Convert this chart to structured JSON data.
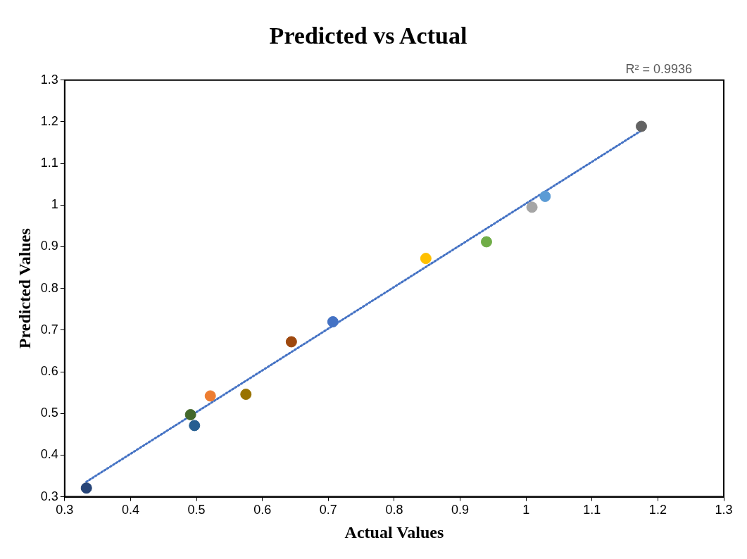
{
  "chart_data": {
    "type": "scatter",
    "title": "Predicted vs Actual",
    "xlabel": "Actual Values",
    "ylabel": "Predicted Values",
    "annotations": [
      "R² = 0.9936"
    ],
    "xlim": [
      0.3,
      1.3
    ],
    "xticks": [
      0.3,
      0.4,
      0.5,
      0.6,
      0.7,
      0.8,
      0.9,
      1,
      1.1,
      1.2,
      1.3
    ],
    "ylim": [
      0.3,
      1.3
    ],
    "yticks": [
      0.3,
      0.4,
      0.5,
      0.6,
      0.7,
      0.8,
      0.9,
      1,
      1.1,
      1.2,
      1.3
    ],
    "grid": false,
    "legend": false,
    "marker": "circle",
    "series": [
      {
        "type": "scatter",
        "x": [
          0.333,
          0.491,
          0.497,
          0.521,
          0.575,
          0.644,
          0.707,
          0.848,
          0.94,
          1.009,
          1.029,
          1.175
        ],
        "values": [
          0.321,
          0.497,
          0.471,
          0.542,
          0.546,
          0.672,
          0.72,
          0.872,
          0.912,
          0.995,
          1.021,
          1.189
        ],
        "colors": [
          "#264478",
          "#43682b",
          "#255e91",
          "#ed7d31",
          "#997300",
          "#9e480e",
          "#4472c4",
          "#ffc000",
          "#70ad47",
          "#a5a5a5",
          "#5b9bd5",
          "#636363"
        ]
      },
      {
        "type": "line",
        "x": [
          0.333,
          1.175
        ],
        "values": [
          0.336,
          1.179
        ],
        "color": "#4472c4",
        "line_style": "dotted",
        "marker": "none"
      }
    ]
  }
}
